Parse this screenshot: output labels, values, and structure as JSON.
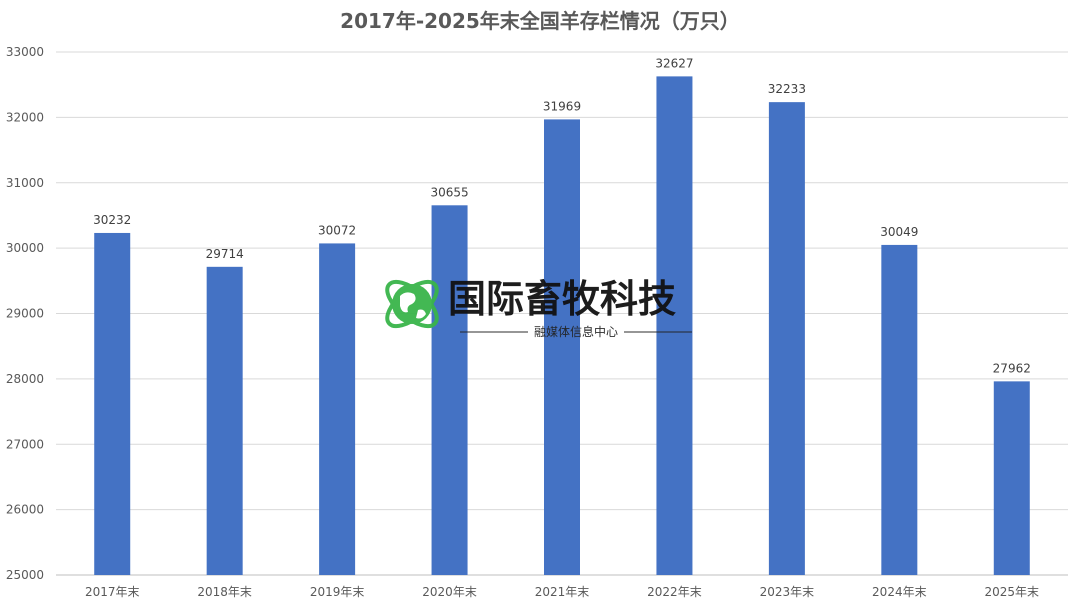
{
  "chart_data": {
    "type": "bar",
    "title": "2017年-2025年末全国羊存栏情况（万只）",
    "categories": [
      "2017年末",
      "2018年末",
      "2019年末",
      "2020年末",
      "2021年末",
      "2022年末",
      "2023年末",
      "2024年末",
      "2025年末"
    ],
    "values": [
      30232,
      29714,
      30072,
      30655,
      31969,
      32627,
      32233,
      30049,
      27962
    ],
    "ylim": [
      25000,
      33000
    ],
    "yticks": [
      25000,
      26000,
      27000,
      28000,
      29000,
      30000,
      31000,
      32000,
      33000
    ],
    "xlabel": "",
    "ylabel": "",
    "grid": true,
    "bar_color": "#4472c4",
    "data_labels": true
  },
  "watermark": {
    "text": "国际畜牧科技",
    "subtext": "融媒体信息中心",
    "icon": "globe-icon",
    "color": "#39b54a"
  }
}
